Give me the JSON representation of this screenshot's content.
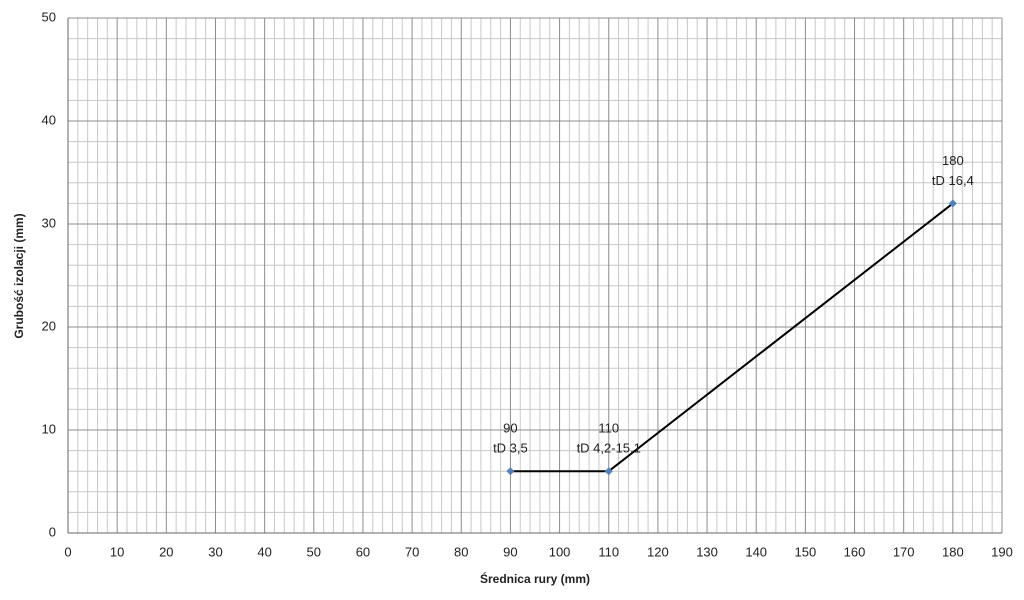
{
  "chart_data": {
    "type": "line",
    "x_label": "Średnica rury (mm)",
    "y_label": "Grubość izolacji (mm)",
    "x": [
      90,
      110,
      180
    ],
    "series": [
      {
        "color": "#000000",
        "marker_color": "#4f81bd",
        "values": [
          6,
          6,
          32
        ],
        "point_labels": [
          [
            "90",
            "tD 3,5"
          ],
          [
            "110",
            "tD  4,2-15,1"
          ],
          [
            "180",
            "tD 16,4"
          ]
        ]
      }
    ],
    "xlim": [
      0,
      190
    ],
    "xticks": [
      0,
      10,
      20,
      30,
      40,
      50,
      60,
      70,
      80,
      90,
      100,
      110,
      120,
      130,
      140,
      150,
      160,
      170,
      180,
      190
    ],
    "ylim": [
      0,
      50
    ],
    "yticks": [
      0,
      10,
      20,
      30,
      40,
      50
    ],
    "minor_xticks": [
      2,
      4,
      6,
      8,
      12,
      14,
      16,
      18,
      22,
      24,
      26,
      28,
      32,
      34,
      36,
      38,
      42,
      44,
      46,
      48,
      52,
      54,
      56,
      58,
      62,
      64,
      66,
      68,
      72,
      74,
      76,
      78,
      82,
      84,
      86,
      88,
      92,
      94,
      96,
      98,
      102,
      104,
      106,
      108,
      112,
      114,
      116,
      118,
      122,
      124,
      126,
      128,
      132,
      134,
      136,
      138,
      142,
      144,
      146,
      148,
      152,
      154,
      156,
      158,
      162,
      164,
      166,
      168,
      172,
      174,
      176,
      178,
      182,
      184,
      186,
      188
    ],
    "minor_yticks": [
      2,
      4,
      6,
      8,
      12,
      14,
      16,
      18,
      22,
      24,
      26,
      28,
      32,
      34,
      36,
      38,
      42,
      44,
      46,
      48
    ],
    "grid": true
  }
}
